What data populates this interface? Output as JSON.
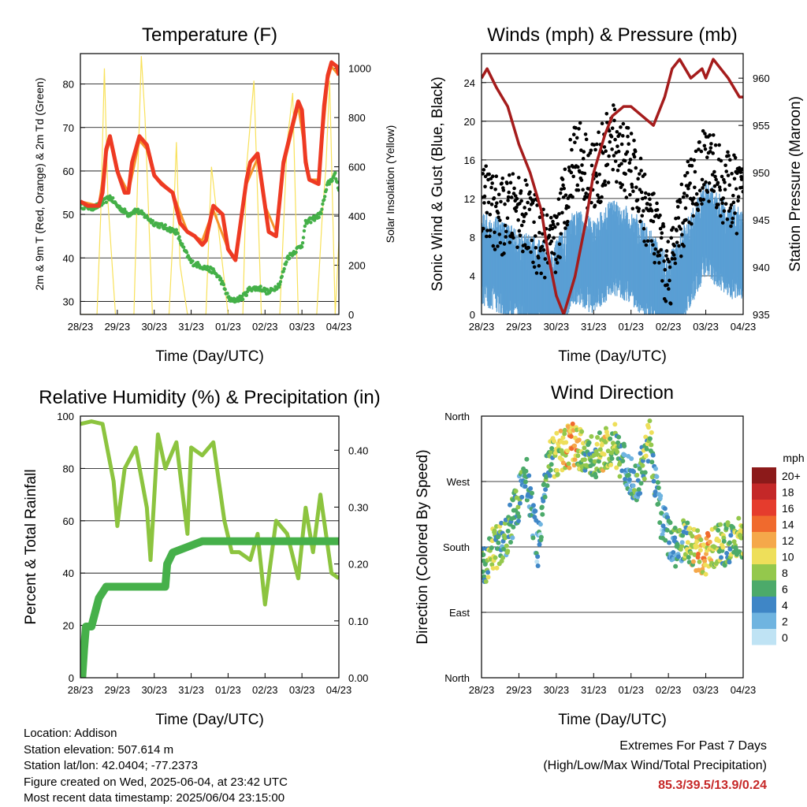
{
  "station": {
    "location": "Location: Addison",
    "elevation": "Station elevation: 507.614 m",
    "latlon": "Station lat/lon: 42.0404; -77.2373",
    "created": "Figure created on Wed, 2025-06-04, at 23:42 UTC",
    "recent": "Most recent data timestamp: 2025/06/04 23:15:00"
  },
  "extremes": {
    "title": "Extremes For Past 7 Days",
    "subtitle": "(High/Low/Max Wind/Total Precipitation)",
    "values": "85.3/39.5/13.9/0.24",
    "color": "#c62828"
  },
  "chart_data": [
    {
      "type": "line",
      "title": "Temperature (F)",
      "xlabel": "Time (Day/UTC)",
      "ylabel": "2m & 9m T (Red, Orange) & 2m Td (Green)",
      "y2label": "Solar Insolation (Yellow)",
      "x_ticks": [
        "28/23",
        "29/23",
        "30/23",
        "31/23",
        "01/23",
        "02/23",
        "03/23",
        "04/23"
      ],
      "xlim": [
        0,
        7
      ],
      "ylim": [
        27,
        87
      ],
      "y_ticks": [
        30,
        40,
        50,
        60,
        70,
        80
      ],
      "y2lim": [
        0,
        1060
      ],
      "y2_ticks": [
        0,
        200,
        400,
        600,
        800,
        1000
      ],
      "grid": true,
      "series": [
        {
          "color": "#ee3a23",
          "axis": "y",
          "x": [
            0,
            0.2,
            0.5,
            0.6,
            0.7,
            0.8,
            1.0,
            1.2,
            1.3,
            1.4,
            1.6,
            1.8,
            2.0,
            2.2,
            2.5,
            2.7,
            2.9,
            3.1,
            3.3,
            3.4,
            3.6,
            3.85,
            4.0,
            4.2,
            4.5,
            4.6,
            4.8,
            5.0,
            5.1,
            5.3,
            5.5,
            5.9,
            6.0,
            6.1,
            6.2,
            6.45,
            6.6,
            6.7,
            6.8,
            6.95,
            7.0
          ],
          "values": [
            53,
            52,
            52,
            55,
            65,
            68,
            60,
            55,
            55,
            62,
            68,
            66,
            59,
            57,
            55,
            48,
            46,
            45,
            43,
            44,
            52,
            50,
            42,
            39.5,
            58,
            62,
            64,
            52,
            46,
            45,
            62,
            76,
            74,
            62,
            58,
            57,
            75,
            82,
            85,
            84,
            82
          ]
        },
        {
          "color": "#f5942a",
          "axis": "y",
          "x": [
            0,
            0.5,
            0.7,
            0.8,
            1.0,
            1.3,
            1.6,
            1.8,
            2.0,
            2.5,
            2.9,
            3.3,
            3.6,
            4.0,
            4.2,
            4.5,
            4.8,
            5.0,
            5.3,
            5.5,
            5.9,
            6.2,
            6.45,
            6.7,
            6.8,
            7.0
          ],
          "values": [
            53,
            52,
            64,
            67,
            60,
            55,
            67,
            65,
            59,
            55,
            46,
            44,
            51,
            42,
            40,
            57,
            63,
            52,
            46,
            61,
            75,
            58,
            58,
            81,
            84,
            82
          ]
        },
        {
          "color": "#44b048",
          "axis": "y",
          "x": [
            0,
            0.3,
            0.5,
            0.8,
            1.0,
            1.3,
            1.5,
            1.7,
            2.0,
            2.3,
            2.6,
            2.8,
            3.0,
            3.3,
            3.6,
            3.8,
            4.0,
            4.1,
            4.4,
            4.6,
            4.9,
            5.1,
            5.4,
            5.6,
            6.0,
            6.1,
            6.5,
            6.7,
            6.9,
            7.0
          ],
          "values": [
            52,
            51.5,
            52,
            54,
            52,
            50,
            51,
            50,
            48,
            47,
            46,
            42,
            39,
            38,
            37,
            35,
            31,
            30,
            31,
            33,
            33,
            32,
            34,
            40,
            43,
            48,
            50,
            57,
            59,
            56
          ]
        },
        {
          "color": "#f8e15a",
          "axis": "y2",
          "x": [
            0,
            0.45,
            0.55,
            0.65,
            0.75,
            0.95,
            1.45,
            1.55,
            1.65,
            1.75,
            1.95,
            2.4,
            2.5,
            2.6,
            2.7,
            2.9,
            3.4,
            3.55,
            3.7,
            4.0,
            4.4,
            4.5,
            4.7,
            4.9,
            5.4,
            5.6,
            5.75,
            5.9,
            6.4,
            6.55,
            6.65,
            6.75,
            6.9,
            7.0
          ],
          "values": [
            0,
            0,
            400,
            1000,
            450,
            0,
            0,
            550,
            1050,
            800,
            0,
            0,
            300,
            700,
            200,
            0,
            0,
            600,
            400,
            0,
            0,
            600,
            950,
            0,
            0,
            700,
            900,
            0,
            0,
            400,
            600,
            950,
            0,
            300
          ]
        }
      ]
    },
    {
      "type": "line",
      "title": "Winds (mph) & Pressure (mb)",
      "xlabel": "Time (Day/UTC)",
      "ylabel": "Sonic Wind & Gust (Blue, Black)",
      "y2label": "Station Pressure (Maroon)",
      "x_ticks": [
        "28/23",
        "29/23",
        "30/23",
        "31/23",
        "01/23",
        "02/23",
        "03/23",
        "04/23"
      ],
      "xlim": [
        0,
        7
      ],
      "ylim": [
        0,
        27
      ],
      "y_ticks": [
        0,
        4,
        8,
        12,
        16,
        20,
        24
      ],
      "y2lim": [
        935,
        962.6
      ],
      "y2_ticks": [
        935,
        940,
        945,
        950,
        955,
        960
      ],
      "grid": true,
      "series": [
        {
          "color": "#a51c1c",
          "axis": "y2",
          "x": [
            0,
            0.15,
            0.4,
            0.7,
            1.0,
            1.3,
            1.6,
            1.8,
            2.0,
            2.2,
            2.5,
            2.8,
            3.0,
            3.3,
            3.5,
            3.8,
            4.0,
            4.3,
            4.6,
            4.9,
            5.1,
            5.3,
            5.6,
            5.9,
            6.0,
            6.2,
            6.4,
            6.6,
            6.9,
            7.0
          ],
          "values": [
            960,
            961,
            959,
            957,
            953,
            950,
            946,
            941,
            937,
            935,
            939,
            945,
            950,
            954,
            956,
            957,
            957,
            956,
            955,
            958,
            961,
            962,
            960,
            961,
            960,
            962,
            961,
            960,
            958,
            958
          ]
        },
        {
          "color": "#5a9fd4",
          "axis": "y",
          "x": [
            0,
            0.5,
            1.0,
            1.5,
            1.9,
            2.5,
            3.0,
            3.5,
            4.0,
            4.5,
            5.0,
            5.5,
            6.0,
            6.5,
            7.0
          ],
          "values": [
            7,
            6,
            5,
            4,
            3,
            7,
            6,
            8,
            7,
            5,
            2,
            6,
            10,
            8,
            7
          ]
        },
        {
          "color": "#000000",
          "axis": "y",
          "x": [
            0,
            0.5,
            1.0,
            1.5,
            1.9,
            2.5,
            3.0,
            3.5,
            4.0,
            4.5,
            5.0,
            5.5,
            6.0,
            6.5,
            7.0
          ],
          "values": [
            12,
            10,
            11,
            8,
            6,
            17,
            14,
            18,
            15,
            10,
            4,
            12,
            16,
            13,
            12
          ]
        }
      ]
    },
    {
      "type": "line",
      "title": "Relative Humidity (%) & Precipitation (in)",
      "xlabel": "Time (Day/UTC)",
      "ylabel": "Percent & Total Rainfall",
      "x_ticks": [
        "28/23",
        "29/23",
        "30/23",
        "31/23",
        "01/23",
        "02/23",
        "03/23",
        "04/23"
      ],
      "xlim": [
        0,
        7
      ],
      "ylim": [
        0,
        100
      ],
      "y_ticks": [
        0,
        20,
        40,
        60,
        80,
        100
      ],
      "y2lim": [
        0,
        0.46
      ],
      "y2_ticks": [
        "0.00",
        "0.10",
        "0.20",
        "0.30",
        "0.40"
      ],
      "grid": true,
      "series": [
        {
          "color": "#8cc43f",
          "axis": "y",
          "x": [
            0,
            0.3,
            0.6,
            0.9,
            1.0,
            1.2,
            1.5,
            1.8,
            1.9,
            2.1,
            2.3,
            2.6,
            2.9,
            3.0,
            3.3,
            3.6,
            3.9,
            4.1,
            4.3,
            4.6,
            4.8,
            5.0,
            5.3,
            5.6,
            5.9,
            6.1,
            6.3,
            6.5,
            6.8,
            7.0
          ],
          "values": [
            97,
            98,
            97,
            75,
            58,
            80,
            88,
            65,
            45,
            93,
            80,
            90,
            55,
            88,
            85,
            90,
            60,
            48,
            48,
            45,
            55,
            28,
            60,
            55,
            38,
            65,
            48,
            70,
            40,
            38
          ]
        },
        {
          "color": "#46b04a",
          "axis": "y2",
          "x": [
            0,
            0.05,
            0.1,
            0.15,
            0.3,
            0.5,
            0.7,
            2.3,
            2.35,
            2.5,
            2.9,
            3.3,
            3.8,
            7.0
          ],
          "values": [
            0,
            0,
            0.05,
            0.09,
            0.09,
            0.14,
            0.16,
            0.16,
            0.2,
            0.22,
            0.23,
            0.24,
            0.24,
            0.24
          ]
        }
      ]
    },
    {
      "type": "scatter",
      "title": "Wind Direction",
      "xlabel": "Time (Day/UTC)",
      "ylabel": "Direction (Colored By Speed)",
      "x_ticks": [
        "28/23",
        "29/23",
        "30/23",
        "31/23",
        "01/23",
        "02/23",
        "03/23",
        "04/23"
      ],
      "xlim": [
        0,
        7
      ],
      "ylim": [
        0,
        360
      ],
      "y_tick_labels": [
        "North",
        "East",
        "South",
        "West",
        "North"
      ],
      "y_tick_values": [
        0,
        90,
        180,
        270,
        360
      ],
      "grid": true,
      "legend": {
        "title": "mph",
        "placement": "right",
        "labels": [
          "20+",
          "18",
          "16",
          "14",
          "12",
          "10",
          "8",
          "6",
          "4",
          "2",
          "0"
        ],
        "colors": [
          "#8c1a1a",
          "#c42828",
          "#e53c2d",
          "#f06a2d",
          "#f5a84a",
          "#eedf5a",
          "#94c84c",
          "#4caa6a",
          "#3f86c6",
          "#6fb4e0",
          "#bfe3f4"
        ]
      },
      "points_summary": {
        "x": [
          0,
          0.3,
          0.6,
          0.9,
          1.2,
          1.5,
          1.8,
          2.1,
          2.4,
          2.7,
          3.0,
          3.3,
          3.6,
          3.9,
          4.2,
          4.5,
          4.8,
          5.1,
          5.4,
          5.7,
          6.0,
          6.3,
          6.6,
          6.9
        ],
        "direction": [
          150,
          175,
          190,
          230,
          280,
          180,
          300,
          310,
          320,
          315,
          300,
          315,
          320,
          280,
          270,
          330,
          220,
          180,
          190,
          175,
          170,
          180,
          185,
          190
        ],
        "speed_mph": [
          6,
          8,
          5,
          6,
          4,
          3,
          6,
          9,
          12,
          8,
          6,
          10,
          7,
          4,
          5,
          8,
          3,
          4,
          6,
          10,
          12,
          8,
          6,
          8
        ]
      }
    }
  ]
}
